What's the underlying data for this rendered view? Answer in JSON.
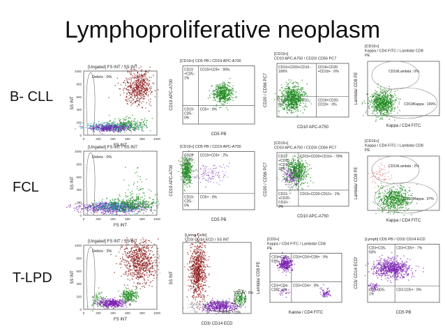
{
  "title": "Lymphoproliferative neoplasm",
  "rows": [
    {
      "label": "B- CLL"
    },
    {
      "label": "FCL"
    },
    {
      "label": "T-LPD"
    }
  ],
  "plots": {
    "r1p1": {
      "header": "[Ungated] FS INT / SS INT",
      "gate": "Debris : 0%",
      "xlabel": "FS INT",
      "ylabel": "SS INT",
      "ticks": [
        "1000",
        "800",
        "600",
        "400",
        "200",
        "0"
      ],
      "xticks": [
        "0",
        "200",
        "400",
        "600",
        "800",
        "1000"
      ]
    },
    "r1p2": {
      "header": "[CD19+] CD5 PB / CD19 APC-A700",
      "q1": "CD19\n+CD5-:\n1%",
      "q2": "CD19+CD5+ : 99%",
      "q3": "CD19-\nCD5- :\n0%",
      "q4": "CD5+ : 0%",
      "xlabel": "CD5 PB",
      "ylabel": "CD19 APC-A700"
    },
    "r1p3": {
      "header": "[CD19+]\nCD10 APC-A750 / CD20/ CD56 PC7",
      "q1": "CD19+CD20+CD10- :\n100%",
      "q2": "CD19+CD20\n+CD10+ : 0%",
      "q3": "CD19+CD20-CD10- :\n0%",
      "q4": "CD19+CD20-\nCD10+ : 0%",
      "xlabel": "CD10 APC-A750",
      "ylabel": "CD20 / CD56 PC7"
    },
    "r1p4": {
      "header": "[CD19+]\nKappa / CD4 FITC / Lambda/ CD8\nPE",
      "g1": "CD19/Lambda : 0%",
      "g2": "CD19/Kappa : 100%",
      "xlabel": "Kappa / CD4 FITC",
      "ylabel": "Lambda/ CD8 PE"
    },
    "r2p1": {
      "header": "[Ungated] FS INT / SS INT",
      "gate": "Debris : 0%",
      "xlabel": "FS INT",
      "ylabel": "SS INT"
    },
    "r2p2": {
      "header": "[CD19+] CD5 PB / CD19 APC-A700",
      "q1": "CD19\n+CD5- :\n98%",
      "q2": "CD19+CD5+ : 2%",
      "q3": "CD19-\nCD5- :\n0%",
      "q4": "CD5+ : 0%",
      "xlabel": "CD5 PB",
      "ylabel": "CD19 APC-A700"
    },
    "r2p3": {
      "header": "[CD19+]\nCD10 APC-A750 / CD20/ CD56 PC7",
      "q1": "CD19\n+CD20\n+CD10-\n18%",
      "q2": "CD19+CD20+CD10+ : 78%",
      "q3": "CD19\n+CD20-\nCD10- :\n3%",
      "q4": "CD19+CD20-CD10+ : 2%",
      "xlabel": "CD10 APC-A750",
      "ylabel": "CD20 / CD56 PC7"
    },
    "r2p4": {
      "header": "[CD19+]\nKappa / CD4 FITC / Lambda/ CD8\nPE",
      "g1": "CD19/Lambda : 2%",
      "g2": "CD19/Kappa : 97%",
      "xlabel": "Kappa / CD4 FITC",
      "ylabel": "Lambda/ CD8 PE"
    },
    "r3p1": {
      "header": "[Ungated] FS INT / SS INT",
      "gate": "Debris : 3%",
      "xlabel": "FS INT",
      "ylabel": "SS INT"
    },
    "r3p2": {
      "header": "[Living Cells]\nCD3/ CD14 ECD / SS INT",
      "g1": "CD14+ : 5%",
      "g2": "CD3+ : 73%",
      "xlabel": "CD3/ CD14 ECD",
      "ylabel": "SS INT"
    },
    "r3p3": {
      "header": "[CD3+]\nKappa / CD4 FITC / Lambda/ CD8\nPE",
      "q1": "CD3+CD8+ :\n91%",
      "q2": "CD3+CD4+CD8+ : 0%",
      "q3": "CD3+CD4-\nCD8- : 0%",
      "q4": "CD3+CD4+ : 9%",
      "xlabel": "Kappa / CD4 FITC",
      "ylabel": "Lambda/ CD8 PE"
    },
    "r3p4": {
      "header": "[Lymph] CD5 PB / CD3/ CD14 ECD",
      "q1": "CD3+CD5-\n61%",
      "q2": "CD3+CD5+ : 7%",
      "q3": "CD3-CD5-\n1%",
      "q4": "CD3-CD5+ : 0%",
      "xlabel": "CD5 PB",
      "ylabel": "CD3/ CD14 ECD"
    }
  },
  "colors": {
    "red": "#8b1a1a",
    "green": "#1f8a1f",
    "purple": "#7a1fb0",
    "teal": "#1f9aa8",
    "pink": "#e08080"
  }
}
